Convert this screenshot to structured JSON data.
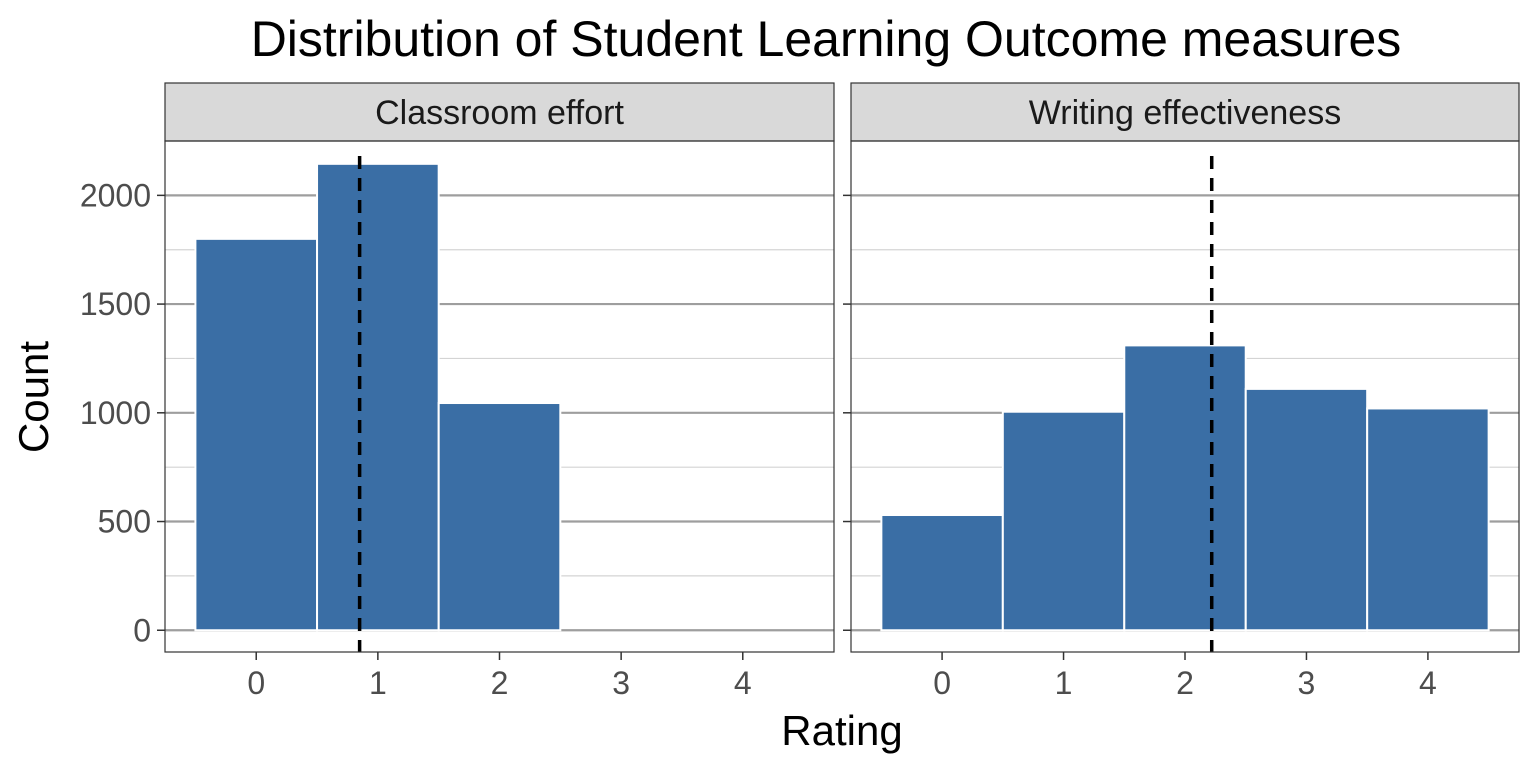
{
  "chart_data": {
    "type": "bar",
    "title": "Distribution of Student Learning Outcome measures",
    "xlabel": "Rating",
    "ylabel": "Count",
    "categories": [
      "0",
      "1",
      "2",
      "3",
      "4"
    ],
    "ylim": [
      -100,
      2250
    ],
    "xlim": [
      -0.75,
      4.75
    ],
    "y_ticks": [
      0,
      500,
      1000,
      1500,
      2000
    ],
    "grid": true,
    "legend": "none",
    "bar_color": "#3a6ea5",
    "mean_line_color": "#000000",
    "panels": [
      {
        "name": "Classroom effort",
        "values": [
          1800,
          2145,
          1045,
          0,
          0
        ],
        "mean": 0.85
      },
      {
        "name": "Writing effectiveness",
        "values": [
          530,
          1005,
          1310,
          1110,
          1020
        ],
        "mean": 2.22
      }
    ]
  }
}
